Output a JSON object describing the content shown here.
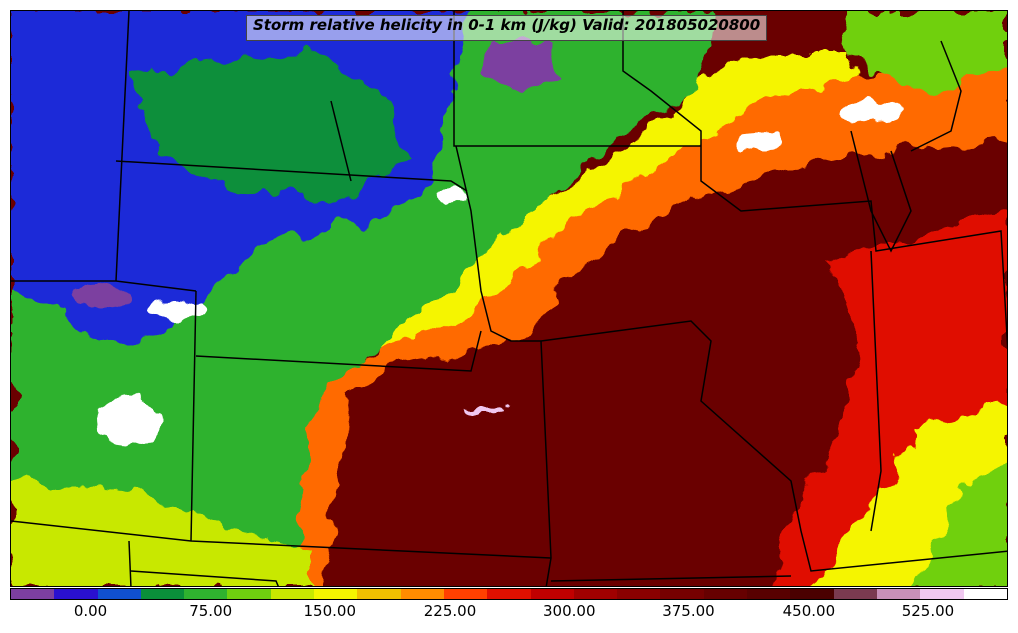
{
  "title": "Storm relative helicity in 0-1 km (J/kg) Valid: 201805020800",
  "colorbar": {
    "colors": [
      "#7c3fa0",
      "#2a10d0",
      "#1050d0",
      "#0a8f3a",
      "#2fb22f",
      "#6fd00f",
      "#c8e800",
      "#f5f500",
      "#f0c000",
      "#ff8c00",
      "#ff4000",
      "#e01000",
      "#c00000",
      "#a00000",
      "#8a0000",
      "#760000",
      "#660000",
      "#580000",
      "#4a0000",
      "#7a3a50",
      "#c890b8",
      "#f0c8f0",
      "#ffffff"
    ],
    "ticks": [
      {
        "label": "0.00",
        "frac": 0.0807
      },
      {
        "label": "75.00",
        "frac": 0.2011
      },
      {
        "label": "150.00",
        "frac": 0.3204
      },
      {
        "label": "225.00",
        "frac": 0.4409
      },
      {
        "label": "300.00",
        "frac": 0.5604
      },
      {
        "label": "375.00",
        "frac": 0.6798
      },
      {
        "label": "450.00",
        "frac": 0.8005
      },
      {
        "label": "525.00",
        "frac": 0.9198
      }
    ]
  },
  "legend_colors": {
    "low": "#2a10d0",
    "mid": "#f5f500",
    "high": "#7a0000",
    "boundary": "#000000"
  }
}
